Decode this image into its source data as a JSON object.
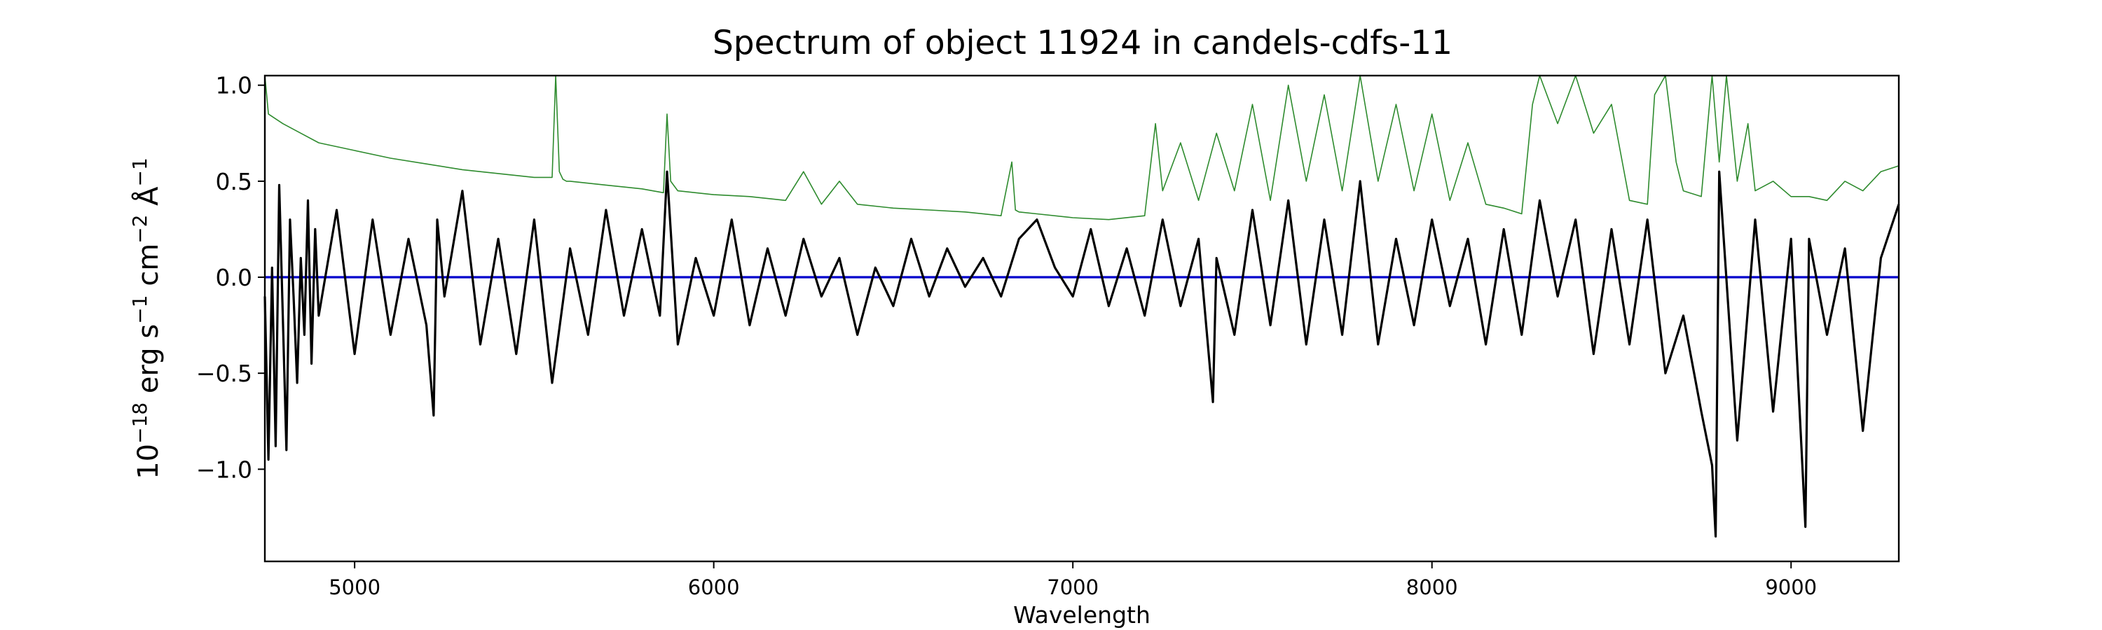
{
  "chart_data": {
    "type": "line",
    "title": "Spectrum of object 11924 in candels-cdfs-11",
    "xlabel": "Wavelength",
    "ylabel": {
      "base": "10",
      "exp1": "−18",
      "unit1": " erg s",
      "exp2": "−1",
      "unit2": " cm",
      "exp3": "−2",
      "unit3": " Å",
      "exp4": "−1"
    },
    "xlim": [
      4750,
      9300
    ],
    "ylim": [
      -1.48,
      1.05
    ],
    "x_ticks": [
      5000,
      6000,
      7000,
      8000,
      9000
    ],
    "x_tick_labels": [
      "5000",
      "6000",
      "7000",
      "8000",
      "9000"
    ],
    "y_ticks": [
      -1.0,
      -0.5,
      0.0,
      0.5,
      1.0
    ],
    "y_tick_labels": [
      "−1.0",
      "−0.5",
      "0.0",
      "0.5",
      "1.0"
    ],
    "grid": false,
    "colors": {
      "flux": "#000000",
      "error": "#2e8b2e",
      "zero": "#0000cc"
    },
    "series": [
      {
        "role": "flux",
        "x": [
          4750,
          4760,
          4770,
          4780,
          4790,
          4800,
          4810,
          4820,
          4830,
          4840,
          4850,
          4860,
          4870,
          4880,
          4890,
          4900,
          4950,
          5000,
          5050,
          5100,
          5150,
          5200,
          5220,
          5230,
          5250,
          5300,
          5350,
          5400,
          5450,
          5500,
          5550,
          5600,
          5650,
          5700,
          5750,
          5800,
          5850,
          5870,
          5900,
          5950,
          6000,
          6050,
          6100,
          6150,
          6200,
          6250,
          6300,
          6350,
          6400,
          6450,
          6500,
          6550,
          6600,
          6650,
          6700,
          6750,
          6800,
          6850,
          6900,
          6950,
          7000,
          7050,
          7100,
          7150,
          7200,
          7250,
          7300,
          7350,
          7390,
          7400,
          7450,
          7500,
          7550,
          7600,
          7650,
          7700,
          7750,
          7800,
          7850,
          7900,
          7950,
          8000,
          8050,
          8100,
          8150,
          8200,
          8250,
          8300,
          8350,
          8400,
          8450,
          8500,
          8550,
          8600,
          8650,
          8700,
          8750,
          8780,
          8790,
          8800,
          8850,
          8900,
          8950,
          9000,
          9040,
          9050,
          9100,
          9150,
          9200,
          9250,
          9300
        ],
        "y": [
          -0.1,
          -0.95,
          0.05,
          -0.88,
          0.48,
          -0.2,
          -0.9,
          0.3,
          -0.1,
          -0.55,
          0.1,
          -0.3,
          0.4,
          -0.45,
          0.25,
          -0.2,
          0.35,
          -0.4,
          0.3,
          -0.3,
          0.2,
          -0.25,
          -0.72,
          0.3,
          -0.1,
          0.45,
          -0.35,
          0.2,
          -0.4,
          0.3,
          -0.55,
          0.15,
          -0.3,
          0.35,
          -0.2,
          0.25,
          -0.2,
          0.55,
          -0.35,
          0.1,
          -0.2,
          0.3,
          -0.25,
          0.15,
          -0.2,
          0.2,
          -0.1,
          0.1,
          -0.3,
          0.05,
          -0.15,
          0.2,
          -0.1,
          0.15,
          -0.05,
          0.1,
          -0.1,
          0.2,
          0.3,
          0.05,
          -0.1,
          0.25,
          -0.15,
          0.15,
          -0.2,
          0.3,
          -0.15,
          0.2,
          -0.65,
          0.1,
          -0.3,
          0.35,
          -0.25,
          0.4,
          -0.35,
          0.3,
          -0.3,
          0.5,
          -0.35,
          0.2,
          -0.25,
          0.3,
          -0.15,
          0.2,
          -0.35,
          0.25,
          -0.3,
          0.4,
          -0.1,
          0.3,
          -0.4,
          0.25,
          -0.35,
          0.3,
          -0.5,
          -0.2,
          -0.7,
          -0.98,
          -1.35,
          0.55,
          -0.85,
          0.3,
          -0.7,
          0.2,
          -1.3,
          0.2,
          -0.3,
          0.15,
          -0.8,
          0.1,
          0.38
        ]
      },
      {
        "role": "error",
        "x": [
          4750,
          4760,
          4800,
          4850,
          4900,
          5000,
          5100,
          5200,
          5300,
          5400,
          5500,
          5550,
          5560,
          5570,
          5580,
          5590,
          5600,
          5700,
          5800,
          5860,
          5870,
          5880,
          5900,
          6000,
          6100,
          6200,
          6250,
          6300,
          6350,
          6400,
          6500,
          6600,
          6700,
          6800,
          6830,
          6840,
          6850,
          6900,
          7000,
          7100,
          7200,
          7230,
          7250,
          7300,
          7350,
          7400,
          7450,
          7500,
          7550,
          7600,
          7650,
          7700,
          7750,
          7800,
          7850,
          7900,
          7950,
          8000,
          8050,
          8100,
          8150,
          8200,
          8250,
          8280,
          8300,
          8350,
          8400,
          8450,
          8500,
          8550,
          8600,
          8620,
          8650,
          8680,
          8700,
          8750,
          8780,
          8800,
          8820,
          8850,
          8880,
          8900,
          8950,
          9000,
          9050,
          9100,
          9150,
          9200,
          9250,
          9300
        ],
        "y": [
          1.05,
          0.85,
          0.8,
          0.75,
          0.7,
          0.66,
          0.62,
          0.59,
          0.56,
          0.54,
          0.52,
          0.52,
          1.05,
          0.55,
          0.51,
          0.5,
          0.5,
          0.48,
          0.46,
          0.44,
          0.85,
          0.5,
          0.45,
          0.43,
          0.42,
          0.4,
          0.55,
          0.38,
          0.5,
          0.38,
          0.36,
          0.35,
          0.34,
          0.32,
          0.6,
          0.35,
          0.34,
          0.33,
          0.31,
          0.3,
          0.32,
          0.8,
          0.45,
          0.7,
          0.4,
          0.75,
          0.45,
          0.9,
          0.4,
          1.0,
          0.5,
          0.95,
          0.45,
          1.05,
          0.5,
          0.9,
          0.45,
          0.85,
          0.4,
          0.7,
          0.38,
          0.36,
          0.33,
          0.9,
          1.05,
          0.8,
          1.05,
          0.75,
          0.9,
          0.4,
          0.38,
          0.95,
          1.05,
          0.6,
          0.45,
          0.42,
          1.05,
          0.6,
          1.05,
          0.5,
          0.8,
          0.45,
          0.5,
          0.42,
          0.42,
          0.4,
          0.5,
          0.45,
          0.55,
          0.58
        ]
      },
      {
        "role": "zero",
        "x": [
          4750,
          9300
        ],
        "y": [
          0,
          0
        ]
      }
    ]
  }
}
